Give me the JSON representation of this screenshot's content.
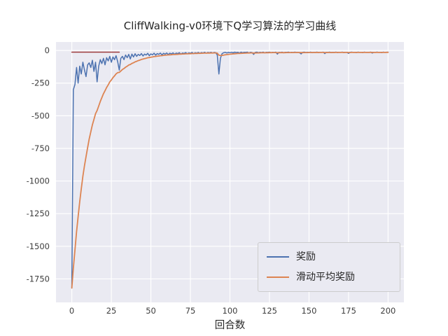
{
  "chart_data": {
    "type": "line",
    "title": "CliffWalking-v0环境下Q学习算法的学习曲线",
    "xlabel": "回合数",
    "ylabel": "",
    "xlim": [
      -10,
      210
    ],
    "ylim": [
      -1930,
      65
    ],
    "xticks": [
      0,
      25,
      50,
      75,
      100,
      125,
      150,
      175,
      200
    ],
    "yticks": [
      0,
      -250,
      -500,
      -750,
      -1000,
      -1250,
      -1500,
      -1750
    ],
    "grid": true,
    "axes_background": "#eaeaf2",
    "grid_color": "#ffffff",
    "legend_position": "lower right",
    "series": [
      {
        "name": "奖励",
        "key": "reward",
        "color": "#4c72b0",
        "width": 1.5,
        "x_start": 0,
        "x_step": 1,
        "values": [
          -1820,
          -300,
          -260,
          -130,
          -250,
          -120,
          -180,
          -90,
          -150,
          -200,
          -110,
          -95,
          -130,
          -75,
          -160,
          -90,
          -240,
          -120,
          -70,
          -100,
          -60,
          -110,
          -55,
          -80,
          -45,
          -90,
          -50,
          -70,
          -40,
          -85,
          -150,
          -60,
          -45,
          -70,
          -35,
          -55,
          -30,
          -65,
          -28,
          -50,
          -25,
          -45,
          -30,
          -38,
          -24,
          -42,
          -28,
          -35,
          -22,
          -40,
          -26,
          -33,
          -21,
          -36,
          -24,
          -30,
          -20,
          -34,
          -22,
          -28,
          -19,
          -31,
          -21,
          -26,
          -18,
          -29,
          -20,
          -24,
          -17,
          -27,
          -19,
          -23,
          -16,
          -25,
          -18,
          -21,
          -15,
          -24,
          -17,
          -20,
          -15,
          -22,
          -16,
          -19,
          -14,
          -21,
          -15,
          -18,
          -14,
          -20,
          -15,
          -17,
          -35,
          -180,
          -60,
          -25,
          -17,
          -14,
          -19,
          -15,
          -17,
          -14,
          -18,
          -13,
          -16,
          -14,
          -20,
          -13,
          -17,
          -14,
          -15,
          -13,
          -19,
          -14,
          -16,
          -30,
          -15,
          -13,
          -17,
          -14,
          -16,
          -13,
          -18,
          -14,
          -15,
          -13,
          -17,
          -14,
          -16,
          -13,
          -28,
          -14,
          -16,
          -13,
          -18,
          -14,
          -15,
          -13,
          -17,
          -14,
          -16,
          -13,
          -15,
          -14,
          -17,
          -26,
          -14,
          -13,
          -16,
          -14,
          -15,
          -13,
          -17,
          -14,
          -15,
          -13,
          -16,
          -14,
          -15,
          -13,
          -24,
          -14,
          -15,
          -13,
          -16,
          -14,
          -15,
          -13,
          -16,
          -14,
          -15,
          -13,
          -16,
          -14,
          -15,
          -22,
          -14,
          -13,
          -15,
          -14,
          -16,
          -13,
          -15,
          -14,
          -16,
          -13,
          -15,
          -14,
          -15,
          -13,
          -20,
          -14,
          -15,
          -13,
          -15,
          -14,
          -16,
          -13,
          -15,
          -14,
          -13
        ]
      },
      {
        "name": "滑动平均奖励",
        "key": "moving-average",
        "color": "#dd8452",
        "width": 1.8,
        "derived": {
          "base": 0,
          "method": "ema",
          "alpha": 0.1
        }
      },
      {
        "name": "",
        "key": "reference",
        "color": "#9d3b3b",
        "width": 1.5,
        "in_legend": false,
        "points": [
          [
            0,
            -13
          ],
          [
            30,
            -13
          ]
        ]
      }
    ]
  }
}
